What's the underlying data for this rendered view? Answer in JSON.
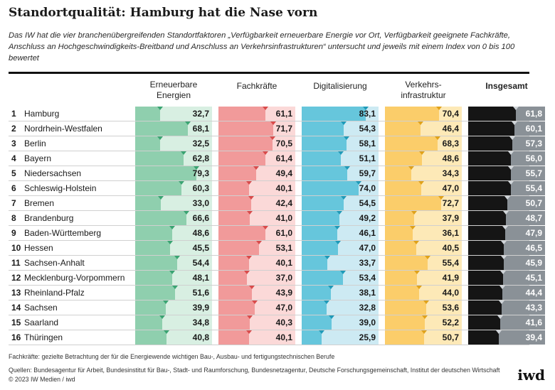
{
  "title": "Standortqualität: Hamburg hat die Nase vorn",
  "subtitle": "Das IW hat die vier branchenübergreifenden Standortfaktoren „Verfügbarkeit erneuerbare Energie vor Ort, Verfügbarkeit geeignete Fachkräfte, Anschluss an Hochgeschwindigkeits-Breitband und Anschluss an Verkehrsinfrastrukturen“ untersucht und jeweils mit einem Index von 0 bis 100 bewertet",
  "colors": {
    "energie": {
      "fill": "#8fcfae",
      "bg": "#d8efe2",
      "marker": "#3aa472"
    },
    "fachkraefte": {
      "fill": "#f19a9a",
      "bg": "#fbd9d8",
      "marker": "#d94b4b"
    },
    "digital": {
      "fill": "#66c6dc",
      "bg": "#cdeaf3",
      "marker": "#1f9ab8"
    },
    "verkehr": {
      "fill": "#fbcd6a",
      "bg": "#fde9b7",
      "marker": "#e0a21a"
    },
    "insgesamt": {
      "fill": "#151515",
      "bg": "#8a9197",
      "marker": "#cfd4d8"
    }
  },
  "chart_data": {
    "type": "table",
    "columns": [
      {
        "key": "energie",
        "label": "Erneuerbare Energien",
        "label_lines": [
          "Erneuerbare",
          "Energien"
        ],
        "bold": false
      },
      {
        "key": "fachkraefte",
        "label": "Fachkräfte",
        "label_lines": [
          "Fachkräfte"
        ],
        "bold": false
      },
      {
        "key": "digital",
        "label": "Digitalisierung",
        "label_lines": [
          "Digitalisierung"
        ],
        "bold": false
      },
      {
        "key": "verkehr",
        "label": "Verkehrs-infrastruktur",
        "label_lines": [
          "Verkehrs-",
          "infrastruktur"
        ],
        "bold": false
      },
      {
        "key": "insgesamt",
        "label": "Insgesamt",
        "label_lines": [
          "Insgesamt"
        ],
        "bold": true
      }
    ],
    "index_range": [
      0,
      100
    ],
    "rows": [
      {
        "rank": "1",
        "state": "Hamburg",
        "values": [
          32.7,
          61.1,
          83.1,
          70.4,
          61.8
        ],
        "labels": [
          "32,7",
          "61,1",
          "83,1",
          "70,4",
          "61,8"
        ]
      },
      {
        "rank": "2",
        "state": "Nordrhein-Westfalen",
        "values": [
          68.1,
          71.7,
          54.3,
          46.4,
          60.1
        ],
        "labels": [
          "68,1",
          "71,7",
          "54,3",
          "46,4",
          "60,1"
        ]
      },
      {
        "rank": "3",
        "state": "Berlin",
        "values": [
          32.5,
          70.5,
          58.1,
          68.3,
          57.3
        ],
        "labels": [
          "32,5",
          "70,5",
          "58,1",
          "68,3",
          "57,3"
        ]
      },
      {
        "rank": "4",
        "state": "Bayern",
        "values": [
          62.8,
          61.4,
          51.1,
          48.6,
          56.0
        ],
        "labels": [
          "62,8",
          "61,4",
          "51,1",
          "48,6",
          "56,0"
        ]
      },
      {
        "rank": "5",
        "state": "Niedersachsen",
        "values": [
          79.3,
          49.4,
          59.7,
          34.3,
          55.7
        ],
        "labels": [
          "79,3",
          "49,4",
          "59,7",
          "34,3",
          "55,7"
        ]
      },
      {
        "rank": "6",
        "state": "Schleswig-Holstein",
        "values": [
          60.3,
          40.1,
          74.0,
          47.0,
          55.4
        ],
        "labels": [
          "60,3",
          "40,1",
          "74,0",
          "47,0",
          "55,4"
        ]
      },
      {
        "rank": "7",
        "state": "Bremen",
        "values": [
          33.0,
          42.4,
          54.5,
          72.7,
          50.7
        ],
        "labels": [
          "33,0",
          "42,4",
          "54,5",
          "72,7",
          "50,7"
        ]
      },
      {
        "rank": "8",
        "state": "Brandenburg",
        "values": [
          66.6,
          41.0,
          49.2,
          37.9,
          48.7
        ],
        "labels": [
          "66,6",
          "41,0",
          "49,2",
          "37,9",
          "48,7"
        ]
      },
      {
        "rank": "9",
        "state": "Baden-Württemberg",
        "values": [
          48.6,
          61.0,
          46.1,
          36.1,
          47.9
        ],
        "labels": [
          "48,6",
          "61,0",
          "46,1",
          "36,1",
          "47,9"
        ]
      },
      {
        "rank": "10",
        "state": "Hessen",
        "values": [
          45.5,
          53.1,
          47.0,
          40.5,
          46.5
        ],
        "labels": [
          "45,5",
          "53,1",
          "47,0",
          "40,5",
          "46,5"
        ]
      },
      {
        "rank": "11",
        "state": "Sachsen-Anhalt",
        "values": [
          54.4,
          40.1,
          33.7,
          55.4,
          45.9
        ],
        "labels": [
          "54,4",
          "40,1",
          "33,7",
          "55,4",
          "45,9"
        ]
      },
      {
        "rank": "12",
        "state": "Mecklenburg-Vorpommern",
        "values": [
          48.1,
          37.0,
          53.4,
          41.9,
          45.1
        ],
        "labels": [
          "48,1",
          "37,0",
          "53,4",
          "41,9",
          "45,1"
        ]
      },
      {
        "rank": "13",
        "state": "Rheinland-Pfalz",
        "values": [
          51.6,
          43.9,
          38.1,
          44.0,
          44.4
        ],
        "labels": [
          "51,6",
          "43,9",
          "38,1",
          "44,0",
          "44,4"
        ]
      },
      {
        "rank": "14",
        "state": "Sachsen",
        "values": [
          39.9,
          47.0,
          32.8,
          53.6,
          43.3
        ],
        "labels": [
          "39,9",
          "47,0",
          "32,8",
          "53,6",
          "43,3"
        ]
      },
      {
        "rank": "15",
        "state": "Saarland",
        "values": [
          34.8,
          40.3,
          39.0,
          52.2,
          41.6
        ],
        "labels": [
          "34,8",
          "40,3",
          "39,0",
          "52,2",
          "41,6"
        ]
      },
      {
        "rank": "16",
        "state": "Thüringen",
        "values": [
          40.8,
          40.1,
          25.9,
          50.7,
          39.4
        ],
        "labels": [
          "40,8",
          "40,1",
          "25,9",
          "50,7",
          "39,4"
        ]
      }
    ]
  },
  "footnotes": {
    "fachkraefte": "Fachkräfte: gezielte Betrachtung der für die Energiewende wichtigen  Bau-, Ausbau- und fertigungstechnischen Berufe",
    "quellen": "Quellen: Bundesagentur für Arbeit, Bundesinstitut für Bau-, Stadt- und Raumforschung, Bundesnetzagentur, Deutsche Forschungsgemeinschaft, Institut der deutschen Wirtschaft",
    "copyright": "© 2023 IW Medien / iwd"
  },
  "logo": "iwd"
}
